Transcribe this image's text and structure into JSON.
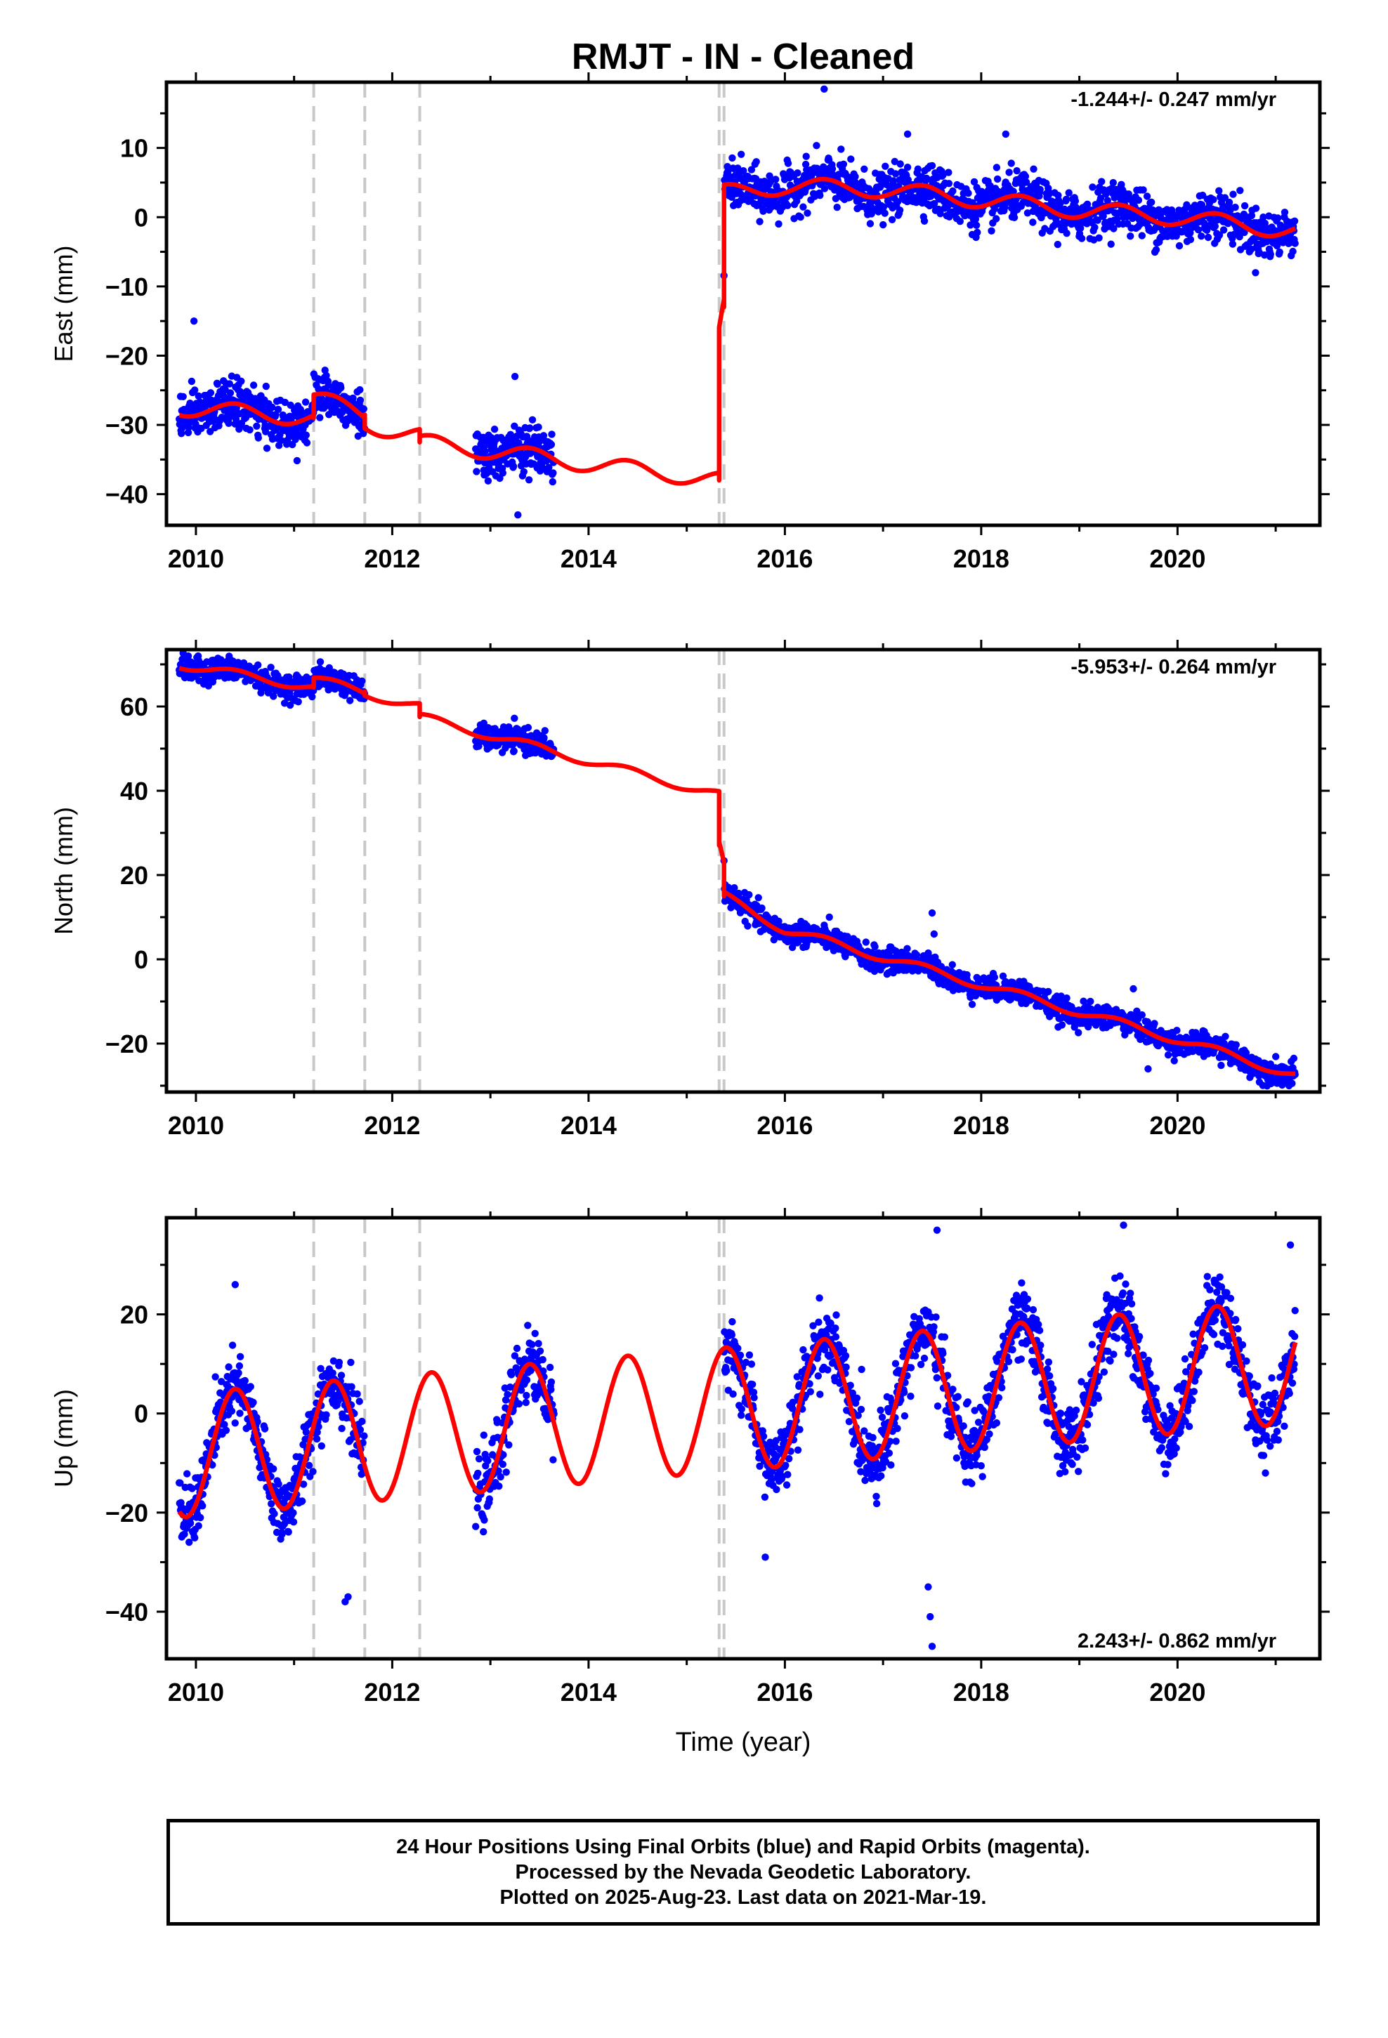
{
  "figure": {
    "title": "RMJT  - IN - Cleaned",
    "xlabel": "Time (year)",
    "footer_lines": [
      "24 Hour Positions Using Final Orbits (blue) and Rapid Orbits (magenta).",
      "Processed by the Nevada Geodetic Laboratory.",
      "Plotted on 2025-Aug-23. Last data on 2021-Mar-19."
    ]
  },
  "chart_data": [
    {
      "type": "scatter",
      "ylabel": "East (mm)",
      "rate": "-1.244+/- 0.247 mm/yr",
      "xlim": [
        2009.7,
        2021.45
      ],
      "ylim": [
        -44.5,
        19.5
      ],
      "yticks": [
        -40,
        -30,
        -20,
        -10,
        0,
        10
      ],
      "xticks": [
        2010,
        2012,
        2014,
        2016,
        2018,
        2020
      ],
      "grid": false,
      "breaks": [
        2011.2,
        2011.72,
        2012.28,
        2015.33,
        2015.38
      ],
      "colors": {
        "observations": "#0000ff",
        "model": "#ff0000",
        "breaks": "#c8c8c8"
      },
      "observations": {
        "segments": [
          [
            2009.83,
            2011.72
          ],
          [
            2012.85,
            2013.65
          ],
          [
            2015.38,
            2021.2
          ]
        ],
        "daily_scatter_mm": 1.7,
        "outliers": [
          [
            2009.98,
            -15
          ],
          [
            2013.25,
            -23
          ],
          [
            2013.28,
            -43
          ],
          [
            2016.4,
            18.5
          ],
          [
            2017.25,
            12
          ],
          [
            2018.25,
            12
          ]
        ]
      },
      "model": {
        "breakpoints": [
          [
            2009.83,
            -27.5
          ],
          [
            2011.2,
            -29.0
          ],
          [
            2011.2,
            -26.0
          ],
          [
            2011.72,
            -28.5
          ],
          [
            2011.72,
            -30.0
          ],
          [
            2012.28,
            -31.5
          ],
          [
            2012.28,
            -32.5
          ],
          [
            2015.33,
            -38.0
          ],
          [
            2015.33,
            -17.0
          ],
          [
            2015.38,
            -13.0
          ],
          [
            2015.38,
            3.5
          ],
          [
            2016.0,
            4.5
          ],
          [
            2017.0,
            4.0
          ],
          [
            2018.0,
            2.5
          ],
          [
            2019.0,
            1.0
          ],
          [
            2020.0,
            0.0
          ],
          [
            2021.2,
            -2.0
          ]
        ],
        "annual_amplitude_mm": 1.2
      }
    },
    {
      "type": "scatter",
      "ylabel": "North (mm)",
      "rate": "-5.953+/- 0.264 mm/yr",
      "xlim": [
        2009.7,
        2021.45
      ],
      "ylim": [
        -31.5,
        73.5
      ],
      "yticks": [
        -20,
        0,
        20,
        40,
        60
      ],
      "xticks": [
        2010,
        2012,
        2014,
        2016,
        2018,
        2020
      ],
      "grid": false,
      "breaks": [
        2011.2,
        2011.72,
        2012.28,
        2015.33,
        2015.38
      ],
      "colors": {
        "observations": "#0000ff",
        "model": "#ff0000",
        "breaks": "#c8c8c8"
      },
      "observations": {
        "segments": [
          [
            2009.83,
            2011.72
          ],
          [
            2012.85,
            2013.65
          ],
          [
            2015.38,
            2021.2
          ]
        ],
        "daily_scatter_mm": 1.4,
        "outliers": [
          [
            2017.5,
            11
          ],
          [
            2017.52,
            6
          ],
          [
            2019.55,
            -7
          ],
          [
            2019.7,
            -26
          ]
        ]
      },
      "model": {
        "breakpoints": [
          [
            2009.83,
            70.0
          ],
          [
            2011.2,
            64.5
          ],
          [
            2011.2,
            66.5
          ],
          [
            2011.72,
            63.5
          ],
          [
            2011.72,
            63.0
          ],
          [
            2012.28,
            60.0
          ],
          [
            2012.28,
            57.5
          ],
          [
            2015.33,
            39.0
          ],
          [
            2015.33,
            27.0
          ],
          [
            2015.38,
            22.0
          ],
          [
            2015.38,
            15.0
          ],
          [
            2016.0,
            7.0
          ],
          [
            2017.0,
            0.5
          ],
          [
            2018.0,
            -6.0
          ],
          [
            2019.0,
            -12.5
          ],
          [
            2020.0,
            -19.0
          ],
          [
            2021.2,
            -27.5
          ]
        ],
        "annual_amplitude_mm": 1.0
      }
    },
    {
      "type": "scatter",
      "ylabel": "Up (mm)",
      "rate": "2.243+/- 0.862 mm/yr",
      "xlim": [
        2009.7,
        2021.45
      ],
      "ylim": [
        -49.5,
        39.5
      ],
      "yticks": [
        -40,
        -20,
        0,
        20
      ],
      "xticks": [
        2010,
        2012,
        2014,
        2016,
        2018,
        2020
      ],
      "grid": false,
      "breaks": [
        2011.2,
        2011.72,
        2012.28,
        2015.33,
        2015.38
      ],
      "colors": {
        "observations": "#0000ff",
        "model": "#ff0000",
        "breaks": "#c8c8c8"
      },
      "observations": {
        "segments": [
          [
            2009.83,
            2011.72
          ],
          [
            2012.85,
            2013.65
          ],
          [
            2015.38,
            2021.2
          ]
        ],
        "daily_scatter_mm": 3.5,
        "outliers": [
          [
            2017.5,
            -47
          ],
          [
            2017.48,
            -41
          ],
          [
            2017.46,
            -35
          ],
          [
            2011.55,
            -37
          ],
          [
            2011.52,
            -38
          ],
          [
            2010.4,
            26
          ],
          [
            2017.55,
            37
          ],
          [
            2019.45,
            38
          ],
          [
            2021.15,
            34
          ],
          [
            2015.8,
            -29
          ]
        ]
      },
      "model": {
        "trend": [
          [
            2009.83,
            -8.5
          ],
          [
            2021.2,
            10.5
          ]
        ],
        "annual_amplitude_mm": 12.5,
        "annual_peak_phase_year": 0.4
      }
    }
  ]
}
